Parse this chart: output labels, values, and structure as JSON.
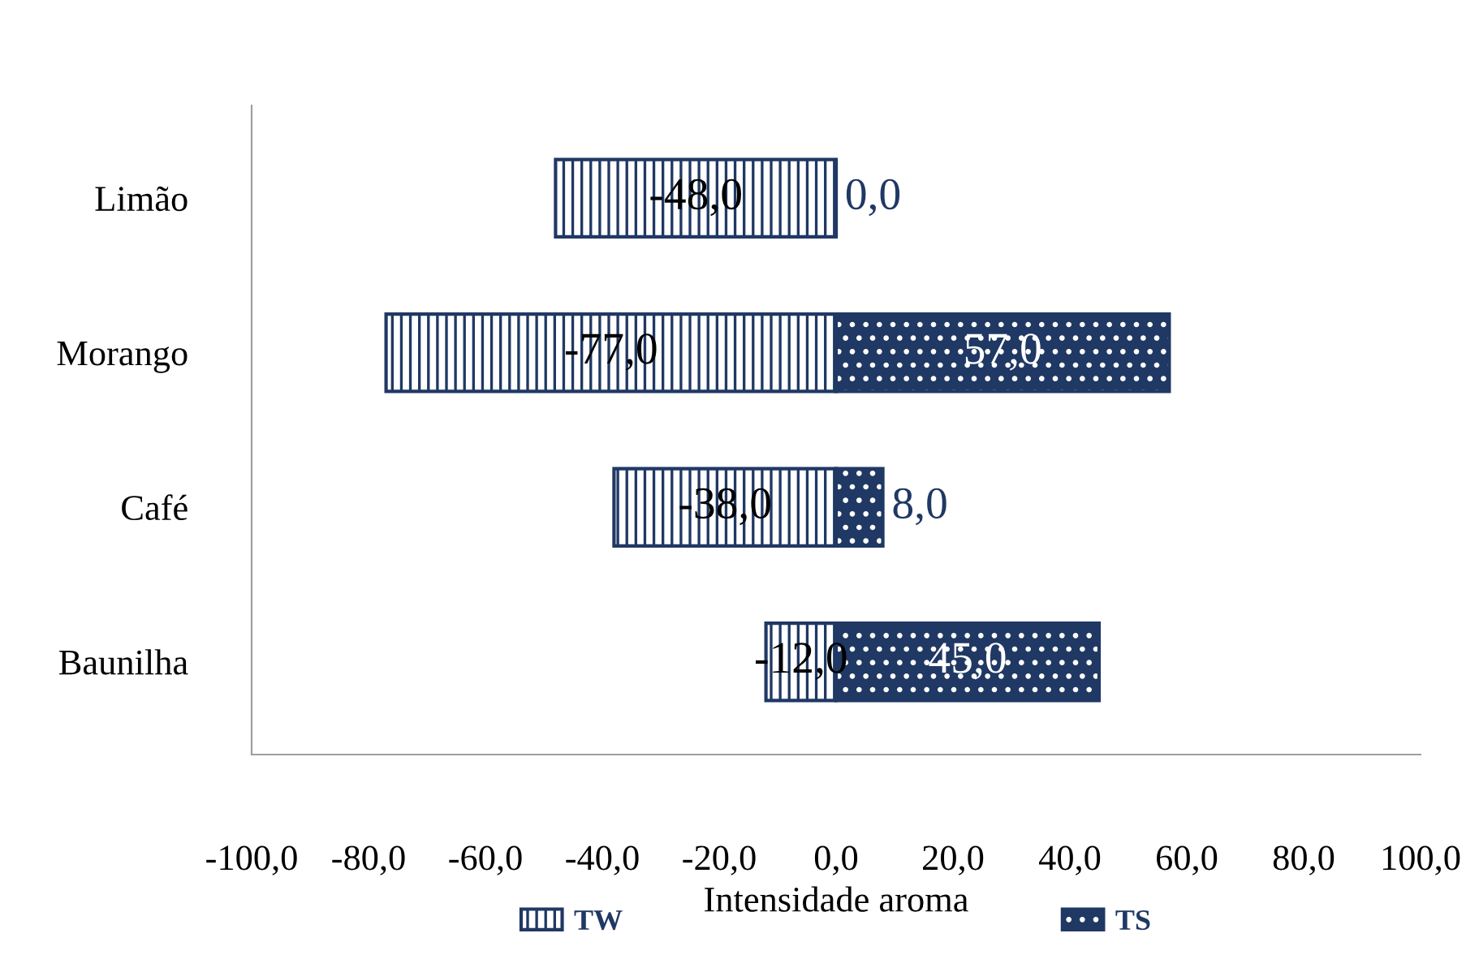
{
  "chart_data": {
    "type": "bar",
    "orientation": "horizontal",
    "stacked": true,
    "xlabel": "Intensidade aroma",
    "categories": [
      "Limão",
      "Morango",
      "Café",
      "Baunilha"
    ],
    "series": [
      {
        "name": "TW",
        "color": "#203864",
        "values": [
          -48.0,
          -77.0,
          -38.0,
          -12.0
        ],
        "value_labels": [
          "-48,0",
          "-77,0",
          "-38,0",
          "-12,0"
        ]
      },
      {
        "name": "TS",
        "color": "#203864",
        "values": [
          0.0,
          57.0,
          8.0,
          45.0
        ],
        "value_labels": [
          "0,0",
          "57,0",
          "8,0",
          "45,0"
        ]
      }
    ],
    "xlim": [
      -100,
      100
    ],
    "xticks": [
      {
        "value": -100,
        "label": "-100,0"
      },
      {
        "value": -80,
        "label": "-80,0"
      },
      {
        "value": -60,
        "label": "-60,0"
      },
      {
        "value": -40,
        "label": "-40,0"
      },
      {
        "value": -20,
        "label": "-20,0"
      },
      {
        "value": 0,
        "label": "0,0"
      },
      {
        "value": 20,
        "label": "20,0"
      },
      {
        "value": 40,
        "label": "40,0"
      },
      {
        "value": 60,
        "label": "60,0"
      },
      {
        "value": 80,
        "label": "80,0"
      },
      {
        "value": 100,
        "label": "100,0"
      }
    ],
    "legend": "bottom",
    "grid": false
  }
}
